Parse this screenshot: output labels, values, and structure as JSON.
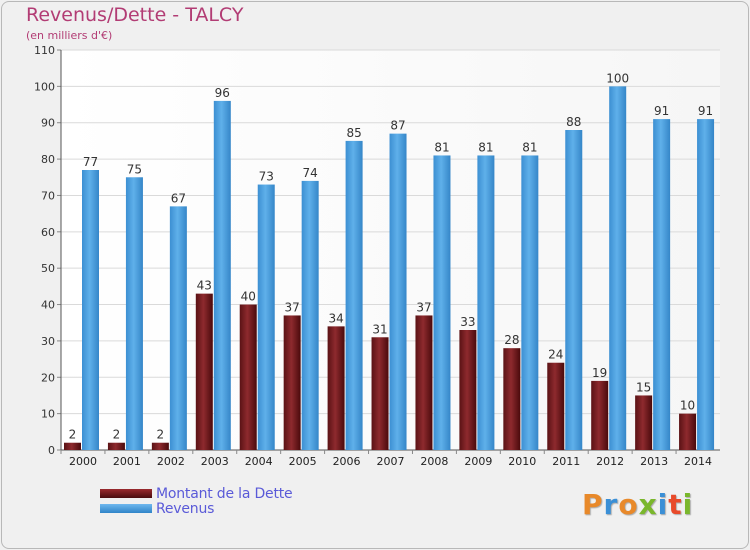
{
  "header": {
    "title": "Revenus/Dette - TALCY",
    "subtitle": "(en milliers d'€)"
  },
  "legend": {
    "debt_label": "Montant de la Dette",
    "revenue_label": "Revenus"
  },
  "logo": {
    "text": "Proxiti"
  },
  "colors": {
    "debt": "#7a1f22",
    "revenue": "#4ea4e4",
    "title": "#b23c74",
    "legend_text": "#5a5ad8"
  },
  "chart_data": {
    "type": "bar",
    "title": "Revenus/Dette - TALCY",
    "ylabel": "(en milliers d'€)",
    "xlabel": "",
    "ylim": [
      0,
      110
    ],
    "yticks": [
      0,
      10,
      20,
      30,
      40,
      50,
      60,
      70,
      80,
      90,
      100,
      110
    ],
    "grid": true,
    "categories": [
      "2000",
      "2001",
      "2002",
      "2003",
      "2004",
      "2005",
      "2006",
      "2007",
      "2008",
      "2009",
      "2010",
      "2011",
      "2012",
      "2013",
      "2014"
    ],
    "series": [
      {
        "name": "Montant de la Dette",
        "values": [
          2,
          2,
          2,
          43,
          40,
          37,
          34,
          31,
          37,
          33,
          28,
          24,
          19,
          15,
          10
        ]
      },
      {
        "name": "Revenus",
        "values": [
          77,
          75,
          67,
          96,
          73,
          74,
          85,
          87,
          81,
          81,
          81,
          88,
          100,
          91,
          91
        ]
      }
    ]
  }
}
